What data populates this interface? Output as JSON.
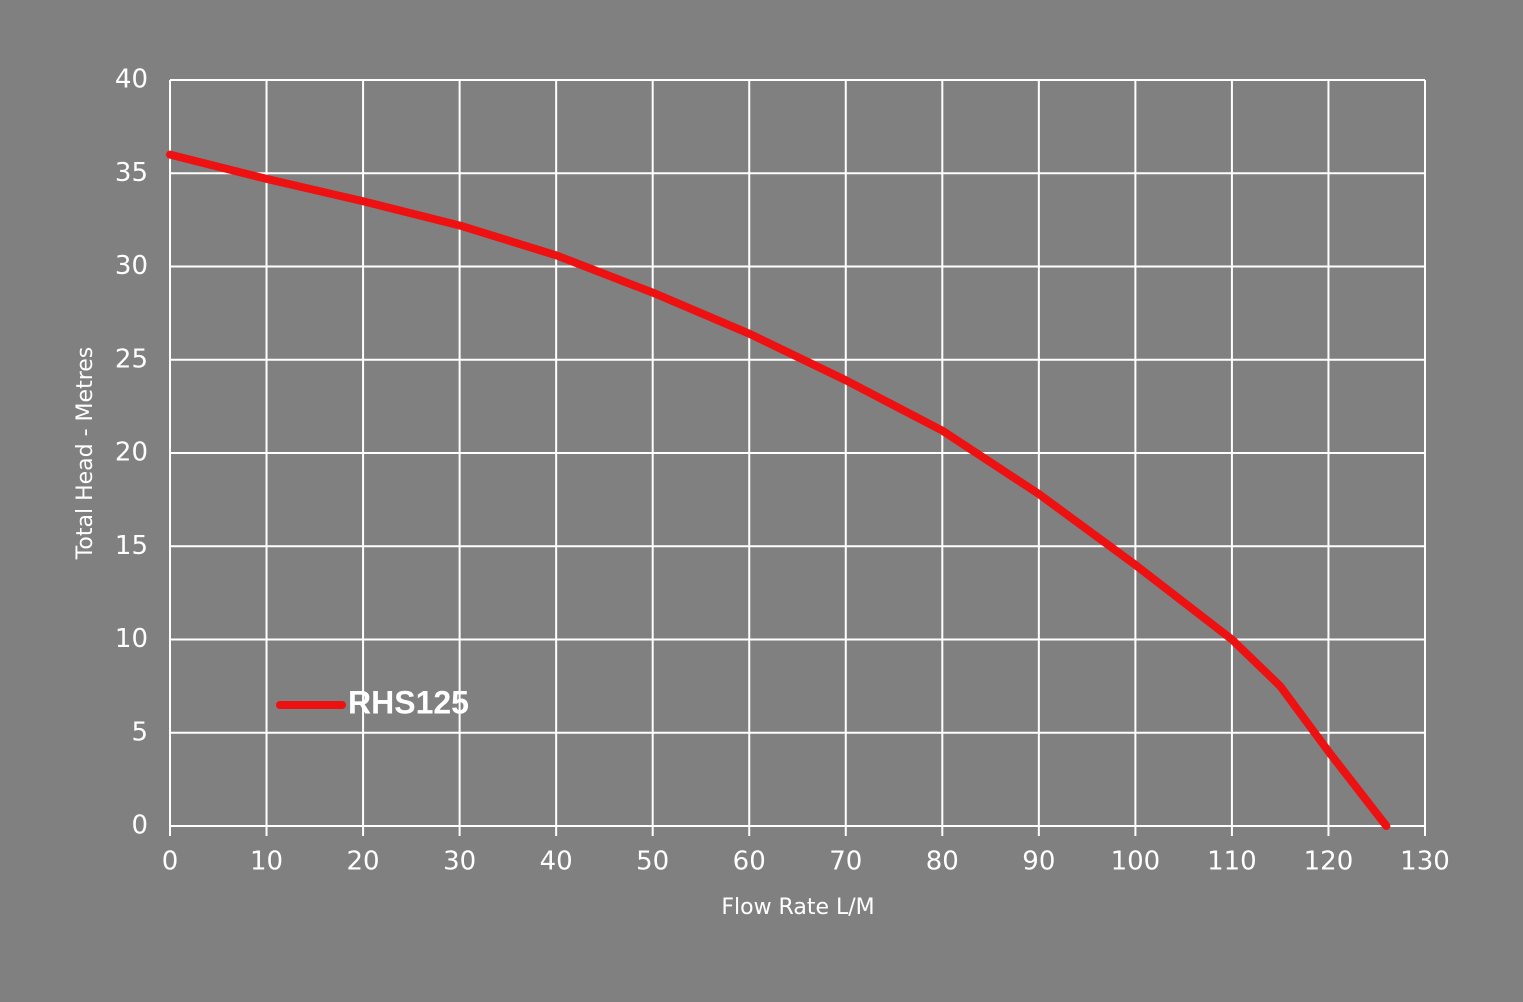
{
  "chart_data": {
    "type": "line",
    "x_label": "Flow Rate L/M",
    "y_label": "Total Head - Metres",
    "x": [
      0,
      10,
      20,
      30,
      40,
      50,
      60,
      70,
      80,
      90,
      100,
      110,
      115,
      120,
      126
    ],
    "series": [
      {
        "name": "RHS125",
        "color": "#ee1111",
        "values": [
          36,
          34.7,
          33.5,
          32.2,
          30.6,
          28.6,
          26.4,
          23.9,
          21.2,
          17.8,
          14,
          10,
          7.5,
          4,
          0
        ]
      }
    ],
    "xlim": [
      0,
      130
    ],
    "xticks": [
      0,
      10,
      20,
      30,
      40,
      50,
      60,
      70,
      80,
      90,
      100,
      110,
      120,
      130
    ],
    "ylim": [
      0,
      40
    ],
    "yticks": [
      0,
      5,
      10,
      15,
      20,
      25,
      30,
      35,
      40
    ],
    "grid": true,
    "legend": "lower left"
  }
}
